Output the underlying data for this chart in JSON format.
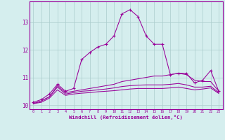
{
  "x": [
    0,
    1,
    2,
    3,
    4,
    5,
    6,
    7,
    8,
    9,
    10,
    11,
    12,
    13,
    14,
    15,
    16,
    17,
    18,
    19,
    20,
    21,
    22,
    23
  ],
  "line1": [
    10.1,
    10.2,
    10.4,
    10.75,
    10.5,
    10.6,
    11.65,
    11.9,
    12.1,
    12.2,
    12.5,
    13.3,
    13.45,
    13.2,
    12.5,
    12.2,
    12.2,
    11.1,
    11.15,
    11.15,
    10.8,
    10.9,
    11.25,
    10.5
  ],
  "line2": [
    10.05,
    10.15,
    10.3,
    10.7,
    10.45,
    10.5,
    10.55,
    10.6,
    10.65,
    10.7,
    10.75,
    10.85,
    10.9,
    10.95,
    11.0,
    11.05,
    11.05,
    11.1,
    11.15,
    11.1,
    10.9,
    10.85,
    10.85,
    10.5
  ],
  "line3": [
    10.05,
    10.15,
    10.3,
    10.65,
    10.4,
    10.45,
    10.5,
    10.52,
    10.55,
    10.58,
    10.62,
    10.67,
    10.7,
    10.72,
    10.73,
    10.73,
    10.73,
    10.75,
    10.78,
    10.73,
    10.65,
    10.65,
    10.68,
    10.45
  ],
  "line4": [
    10.05,
    10.1,
    10.25,
    10.55,
    10.35,
    10.4,
    10.43,
    10.45,
    10.48,
    10.5,
    10.52,
    10.55,
    10.58,
    10.6,
    10.6,
    10.6,
    10.6,
    10.62,
    10.65,
    10.6,
    10.55,
    10.58,
    10.62,
    10.42
  ],
  "color": "#990099",
  "bg_color": "#d5eeee",
  "grid_color": "#aacccc",
  "ylabel_ticks": [
    10,
    11,
    12,
    13
  ],
  "xlabel": "Windchill (Refroidissement éolien,°C)",
  "ylim": [
    9.85,
    13.75
  ],
  "xlim": [
    -0.5,
    23.5
  ]
}
